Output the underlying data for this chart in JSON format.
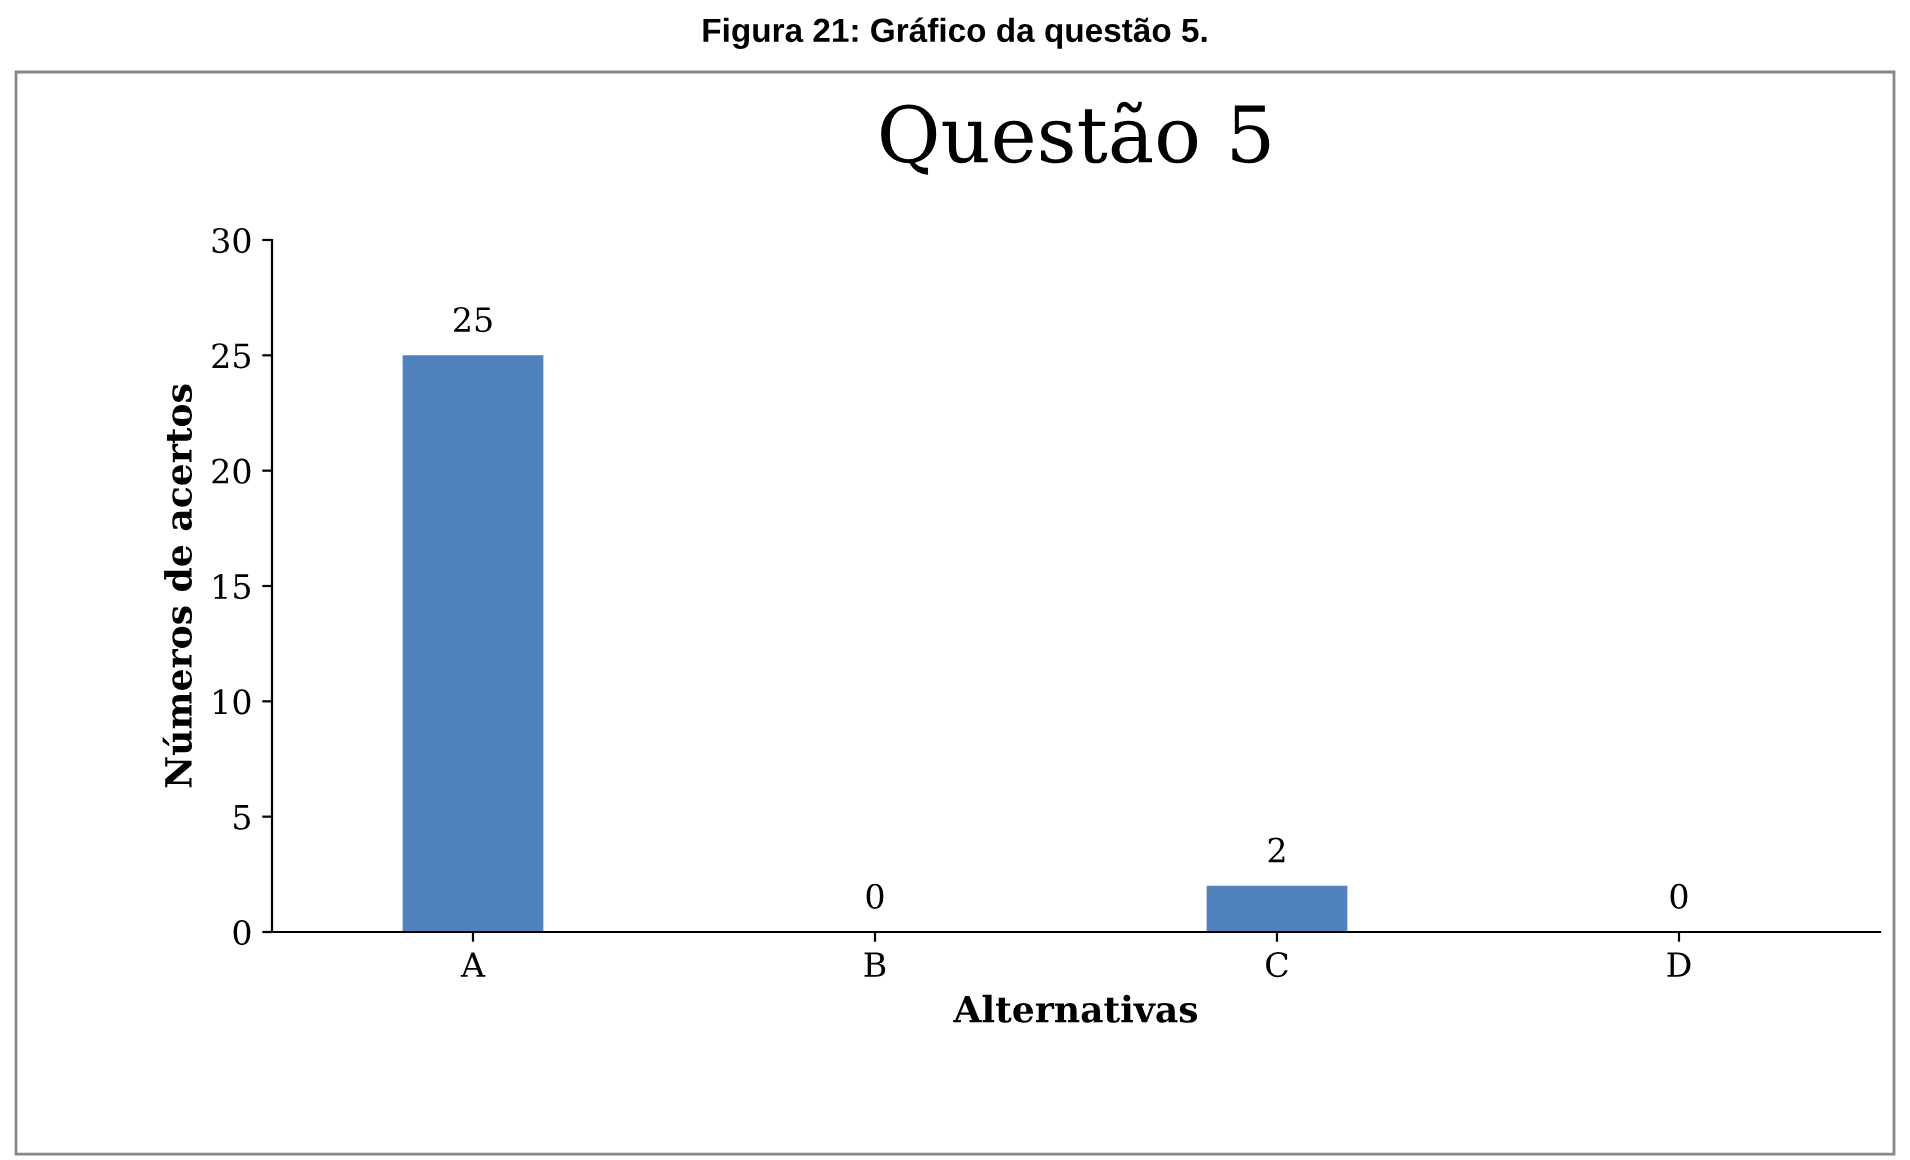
{
  "chart_data": {
    "type": "bar",
    "title": "Questão 5",
    "xlabel": "Alternativas",
    "ylabel": "Números de acertos",
    "categories": [
      "A",
      "B",
      "C",
      "D"
    ],
    "values": [
      25,
      0,
      2,
      0
    ],
    "color": "#4f81bd",
    "ylim": [
      0,
      30
    ],
    "yticks": [
      0,
      5,
      10,
      15,
      20,
      25,
      30
    ],
    "data_labels": true,
    "grid": false,
    "legend": false,
    "annotations": [
      "Figura 21: Gráfico da questão 5."
    ]
  }
}
